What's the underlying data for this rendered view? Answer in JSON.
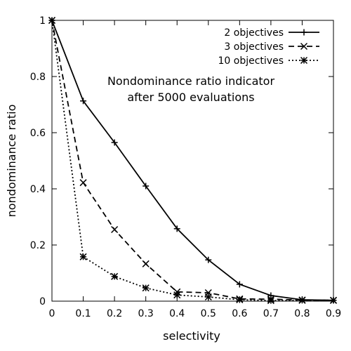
{
  "chart_data": {
    "type": "line",
    "title": "",
    "xlabel": "selectivity",
    "ylabel": "nondominance ratio",
    "xlim": [
      0,
      0.9
    ],
    "ylim": [
      0,
      1
    ],
    "x_ticks": [
      0,
      0.1,
      0.2,
      0.3,
      0.4,
      0.5,
      0.6,
      0.7,
      0.8,
      0.9
    ],
    "y_ticks": [
      0,
      0.2,
      0.4,
      0.6,
      0.8,
      1
    ],
    "x_tick_labels": [
      "0",
      "0.1",
      "0.2",
      "0.3",
      "0.4",
      "0.5",
      "0.6",
      "0.7",
      "0.8",
      "0.9"
    ],
    "y_tick_labels": [
      "0",
      "0.2",
      "0.4",
      "0.6",
      "0.8",
      "1"
    ],
    "grid": false,
    "legend_position": "top-right",
    "annotation": [
      "Nondominance ratio indicator",
      "after 5000 evaluations"
    ],
    "x": [
      0,
      0.1,
      0.2,
      0.3,
      0.4,
      0.5,
      0.6,
      0.7,
      0.8,
      0.9
    ],
    "series": [
      {
        "name": "2 objectives",
        "marker": "plus",
        "dash": "solid",
        "values": [
          1.0,
          0.713,
          0.565,
          0.41,
          0.258,
          0.147,
          0.06,
          0.02,
          0.005,
          0.003
        ]
      },
      {
        "name": "3 objectives",
        "marker": "cross",
        "dash": "dashed",
        "values": [
          1.0,
          0.422,
          0.255,
          0.133,
          0.033,
          0.03,
          0.008,
          0.007,
          0.004,
          0.003
        ]
      },
      {
        "name": "10 objectives",
        "marker": "star",
        "dash": "dotted",
        "values": [
          1.0,
          0.158,
          0.088,
          0.047,
          0.022,
          0.015,
          0.005,
          0.002,
          0.003,
          0.003
        ]
      }
    ]
  }
}
